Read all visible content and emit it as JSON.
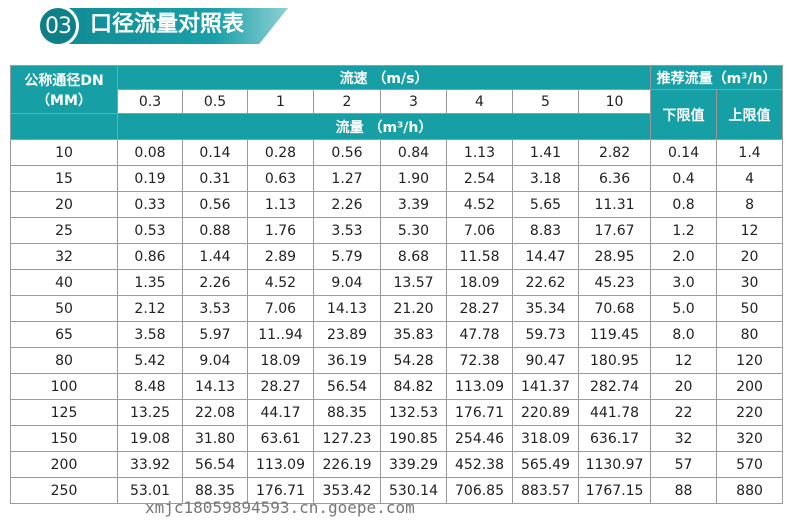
{
  "section": {
    "number": "03",
    "title": "口径流量对照表"
  },
  "table": {
    "dn_header": "公称通径DN",
    "dn_unit": "（MM）",
    "velocity_header": "流速 （m/s）",
    "velocities": [
      "0.3",
      "0.5",
      "1",
      "2",
      "3",
      "4",
      "5",
      "10"
    ],
    "flow_header": "流量 （m³/h）",
    "recommended_header": "推荐流量（m³/h）",
    "lower_label": "下限值",
    "upper_label": "上限值",
    "rows": [
      [
        "10",
        "0.08",
        "0.14",
        "0.28",
        "0.56",
        "0.84",
        "1.13",
        "1.41",
        "2.82",
        "0.14",
        "1.4"
      ],
      [
        "15",
        "0.19",
        "0.31",
        "0.63",
        "1.27",
        "1.90",
        "2.54",
        "3.18",
        "6.36",
        "0.4",
        "4"
      ],
      [
        "20",
        "0.33",
        "0.56",
        "1.13",
        "2.26",
        "3.39",
        "4.52",
        "5.65",
        "11.31",
        "0.8",
        "8"
      ],
      [
        "25",
        "0.53",
        "0.88",
        "1.76",
        "3.53",
        "5.30",
        "7.06",
        "8.83",
        "17.67",
        "1.2",
        "12"
      ],
      [
        "32",
        "0.86",
        "1.44",
        "2.89",
        "5.79",
        "8.68",
        "11.58",
        "14.47",
        "28.95",
        "2.0",
        "20"
      ],
      [
        "40",
        "1.35",
        "2.26",
        "4.52",
        "9.04",
        "13.57",
        "18.09",
        "22.62",
        "45.23",
        "3.0",
        "30"
      ],
      [
        "50",
        "2.12",
        "3.53",
        "7.06",
        "14.13",
        "21.20",
        "28.27",
        "35.34",
        "70.68",
        "5.0",
        "50"
      ],
      [
        "65",
        "3.58",
        "5.97",
        "11..94",
        "23.89",
        "35.83",
        "47.78",
        "59.73",
        "119.45",
        "8.0",
        "80"
      ],
      [
        "80",
        "5.42",
        "9.04",
        "18.09",
        "36.19",
        "54.28",
        "72.38",
        "90.47",
        "180.95",
        "12",
        "120"
      ],
      [
        "100",
        "8.48",
        "14.13",
        "28.27",
        "56.54",
        "84.82",
        "113.09",
        "141.37",
        "282.74",
        "20",
        "200"
      ],
      [
        "125",
        "13.25",
        "22.08",
        "44.17",
        "88.35",
        "132.53",
        "176.71",
        "220.89",
        "441.78",
        "22",
        "220"
      ],
      [
        "150",
        "19.08",
        "31.80",
        "63.61",
        "127.23",
        "190.85",
        "254.46",
        "318.09",
        "636.17",
        "32",
        "320"
      ],
      [
        "200",
        "33.92",
        "56.54",
        "113.09",
        "226.19",
        "339.29",
        "452.38",
        "565.49",
        "1130.97",
        "57",
        "570"
      ],
      [
        "250",
        "53.01",
        "88.35",
        "176.71",
        "353.42",
        "530.14",
        "706.85",
        "883.57",
        "1767.15",
        "88",
        "880"
      ]
    ]
  },
  "watermark": "xmjc18059894593.cn.goepe.com",
  "colors": {
    "header": "#16a0a6",
    "badge": "#0f7f88"
  }
}
